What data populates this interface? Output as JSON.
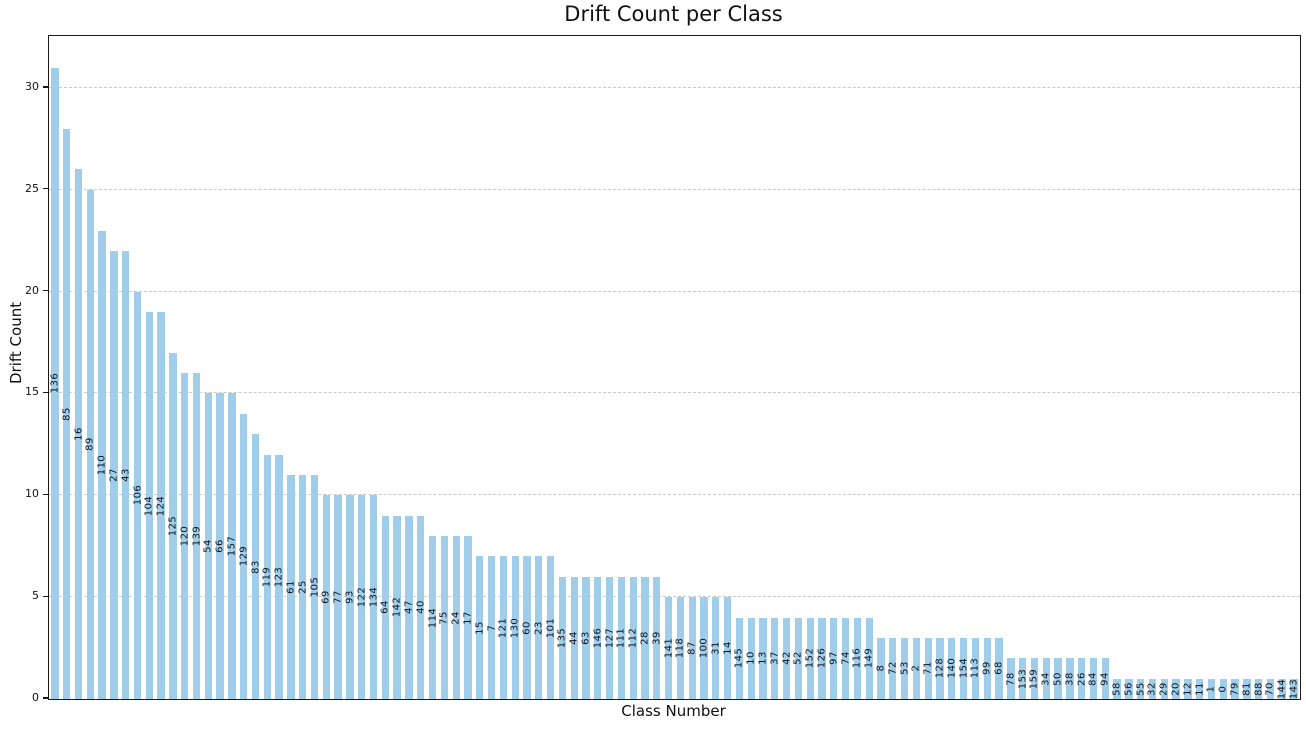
{
  "title": "Drift Count per Class",
  "chart_data": {
    "type": "bar",
    "title": "Drift Count per Class",
    "xlabel": "Class Number",
    "ylabel": "Drift Count",
    "ylim": [
      0,
      32.55
    ],
    "yticks": [
      0,
      5,
      10,
      15,
      20,
      25,
      30
    ],
    "grid": true,
    "grid_style": "dashed-horizontal",
    "legend_position": "none",
    "bar_color": "#9fcdea",
    "bar_label_color": "#10141c",
    "bar_label_rotation_deg": 90,
    "bar_label_position": "center-of-bar",
    "sort_order": "descending",
    "categories": [
      "136",
      "85",
      "16",
      "89",
      "110",
      "27",
      "43",
      "106",
      "104",
      "124",
      "125",
      "120",
      "139",
      "54",
      "66",
      "157",
      "129",
      "83",
      "119",
      "123",
      "61",
      "25",
      "105",
      "69",
      "77",
      "93",
      "122",
      "134",
      "64",
      "142",
      "47",
      "40",
      "114",
      "75",
      "24",
      "17",
      "15",
      "7",
      "121",
      "130",
      "60",
      "23",
      "101",
      "135",
      "44",
      "63",
      "146",
      "127",
      "111",
      "112",
      "28",
      "39",
      "141",
      "118",
      "87",
      "100",
      "31",
      "14",
      "145",
      "10",
      "13",
      "37",
      "42",
      "52",
      "152",
      "126",
      "97",
      "74",
      "116",
      "149",
      "8",
      "72",
      "53",
      "2",
      "71",
      "128",
      "140",
      "154",
      "113",
      "99",
      "68",
      "78",
      "153",
      "159",
      "34",
      "50",
      "38",
      "26",
      "84",
      "94",
      "58",
      "56",
      "55",
      "32",
      "29",
      "20",
      "12",
      "11",
      "1",
      "0",
      "79",
      "81",
      "88",
      "70",
      "144",
      "143"
    ],
    "values": [
      31,
      28,
      26,
      25,
      23,
      22,
      22,
      20,
      19,
      19,
      17,
      16,
      16,
      15,
      15,
      15,
      14,
      13,
      12,
      12,
      11,
      11,
      11,
      10,
      10,
      10,
      10,
      10,
      9,
      9,
      9,
      9,
      8,
      8,
      8,
      8,
      7,
      7,
      7,
      7,
      7,
      7,
      7,
      6,
      6,
      6,
      6,
      6,
      6,
      6,
      6,
      6,
      5,
      5,
      5,
      5,
      5,
      5,
      4,
      4,
      4,
      4,
      4,
      4,
      4,
      4,
      4,
      4,
      4,
      4,
      3,
      3,
      3,
      3,
      3,
      3,
      3,
      3,
      3,
      3,
      3,
      2,
      2,
      2,
      2,
      2,
      2,
      2,
      2,
      2,
      1,
      1,
      1,
      1,
      1,
      1,
      1,
      1,
      1,
      1,
      1,
      1,
      1,
      1,
      1,
      1
    ]
  }
}
